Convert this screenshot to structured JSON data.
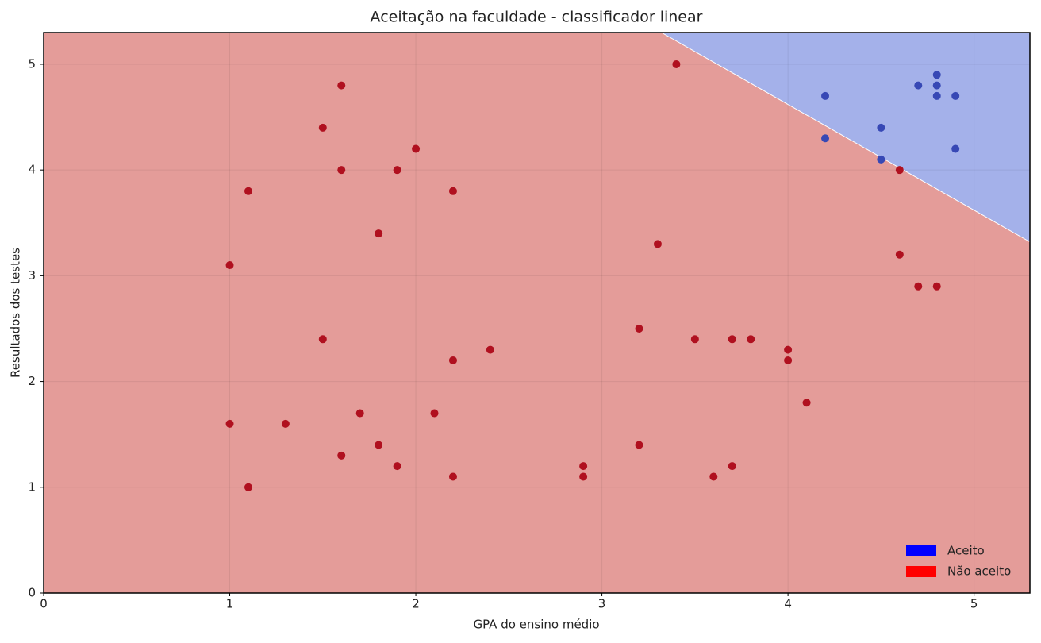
{
  "chart_data": {
    "type": "scatter",
    "title": "Aceitação na faculdade - classificador linear",
    "x_label": "GPA do ensino médio",
    "y_label": "Resultados dos testes",
    "xlim": [
      0,
      5.3
    ],
    "ylim": [
      0,
      5.3
    ],
    "xticks": [
      0,
      1,
      2,
      3,
      4,
      5
    ],
    "yticks": [
      0,
      1,
      2,
      3,
      4,
      5
    ],
    "grid": true,
    "legend": "lower right",
    "decision_boundary": {
      "x": [
        3.32,
        5.3
      ],
      "y": [
        5.3,
        3.32
      ]
    },
    "series": [
      {
        "name": "Aceito",
        "color": "#0000ff",
        "marker_color": "#3748b5",
        "region_color": "#a4b1ea",
        "x": [
          4.2,
          4.2,
          4.5,
          4.5,
          4.7,
          4.8,
          4.8,
          4.8,
          4.9,
          4.9
        ],
        "values": [
          4.7,
          4.3,
          4.4,
          4.1,
          4.8,
          4.9,
          4.8,
          4.7,
          4.7,
          4.2
        ]
      },
      {
        "name": "Não aceito",
        "color": "#ff0000",
        "marker_color": "#b0101f",
        "region_color": "#e49c99",
        "x": [
          1.0,
          1.1,
          1.6,
          1.5,
          1.6,
          2.0,
          1.9,
          2.2,
          1.8,
          3.4,
          3.3,
          4.6,
          4.6,
          4.7,
          4.8,
          1.5,
          2.4,
          2.2,
          1.0,
          1.3,
          1.7,
          2.1,
          1.6,
          1.8,
          1.9,
          1.1,
          2.2,
          2.9,
          2.9,
          3.2,
          3.2,
          3.5,
          3.7,
          3.8,
          4.0,
          4.0,
          4.1,
          3.6,
          3.7
        ],
        "values": [
          3.1,
          3.8,
          4.8,
          4.4,
          4.0,
          4.2,
          4.0,
          3.8,
          3.4,
          5.0,
          3.3,
          4.0,
          3.2,
          2.9,
          2.9,
          2.4,
          2.3,
          2.2,
          1.6,
          1.6,
          1.7,
          1.7,
          1.3,
          1.4,
          1.2,
          1.0,
          1.1,
          1.2,
          1.1,
          1.4,
          2.5,
          2.4,
          2.4,
          2.4,
          2.3,
          2.2,
          1.8,
          1.1,
          1.2
        ]
      }
    ]
  }
}
